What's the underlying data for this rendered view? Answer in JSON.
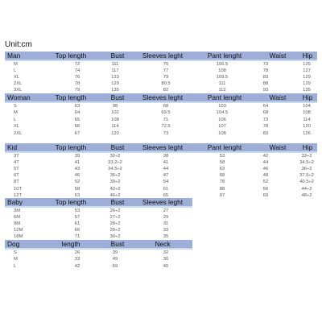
{
  "unit_label": "Unit:cm",
  "colors": {
    "header_bg": "#9dafd8",
    "separator": "#c9dbee",
    "background": "#ffffff"
  },
  "sections": [
    {
      "id": "man",
      "headers": [
        "Man",
        "Top length",
        "Bust",
        "Sleeves leght",
        "Pant lenght",
        "Waist",
        "Hip"
      ],
      "rows": [
        [
          "M",
          "72",
          "111",
          "75",
          "106.5",
          "73",
          "125"
        ],
        [
          "L",
          "74",
          "117",
          "77",
          "108",
          "78",
          "127"
        ],
        [
          "XL",
          "76",
          "123",
          "79",
          "109.5",
          "83",
          "129"
        ],
        [
          "2XL",
          "78",
          "129",
          "80.5",
          "111",
          "88",
          "129"
        ],
        [
          "3XL",
          "79",
          "135",
          "82",
          "112",
          "93",
          "135"
        ]
      ]
    },
    {
      "id": "woman",
      "headers": [
        "Woman",
        "Top length",
        "Bust",
        "Sleeves leght",
        "Pant lenght",
        "Waist",
        "Hip"
      ],
      "rows": [
        [
          "S",
          "63",
          "98",
          "68",
          "103",
          "64",
          "104"
        ],
        [
          "M",
          "64",
          "102",
          "69.5",
          "104.5",
          "68",
          "108"
        ],
        [
          "L",
          "65",
          "108",
          "71",
          "106",
          "73",
          "114"
        ],
        [
          "XL",
          "66",
          "114",
          "72.5",
          "107",
          "78",
          "120"
        ],
        [
          "2XL",
          "67",
          "120",
          "73",
          "108",
          "83",
          "126"
        ]
      ]
    },
    {
      "id": "kid",
      "headers": [
        "Kid",
        "Top length",
        "Bust",
        "Sleeves leght",
        "Pant lenght",
        "Waist",
        "Hip"
      ],
      "rows": [
        [
          "3T",
          "39",
          "32÷2",
          "38",
          "53",
          "42",
          "33÷2"
        ],
        [
          "4T",
          "41",
          "33.2÷2",
          "41",
          "58",
          "44",
          "34.5÷2"
        ],
        [
          "5T",
          "43",
          "34.5÷2",
          "44",
          "63",
          "46",
          "36÷2"
        ],
        [
          "6T",
          "46",
          "36÷2",
          "47",
          "68",
          "48",
          "37.5÷2"
        ],
        [
          "8T",
          "52",
          "39÷2",
          "54",
          "78",
          "52",
          "40.5÷2"
        ],
        [
          "10T",
          "58",
          "42÷2",
          "61",
          "88",
          "56",
          "44÷2"
        ],
        [
          "12T",
          "63",
          "46÷2",
          "65",
          "97",
          "60",
          "48÷2"
        ]
      ]
    },
    {
      "id": "baby",
      "headers": [
        "Baby",
        "Top length",
        "Bust",
        "Sleeves leght"
      ],
      "rows": [
        [
          "3M",
          "53",
          "26÷2",
          "27"
        ],
        [
          "6M",
          "57",
          "27÷2",
          "29"
        ],
        [
          "9M",
          "61",
          "28÷2",
          "31"
        ],
        [
          "12M",
          "66",
          "29÷2",
          "33"
        ],
        [
          "18M",
          "71",
          "30÷2",
          "35"
        ]
      ]
    },
    {
      "id": "dog",
      "headers": [
        "Dog",
        "length",
        "Bust",
        "Neck"
      ],
      "rows": [
        [
          "S",
          "26",
          "39",
          "32"
        ],
        [
          "M",
          "33",
          "49",
          "36"
        ],
        [
          "L",
          "42",
          "59",
          "40"
        ]
      ]
    }
  ]
}
